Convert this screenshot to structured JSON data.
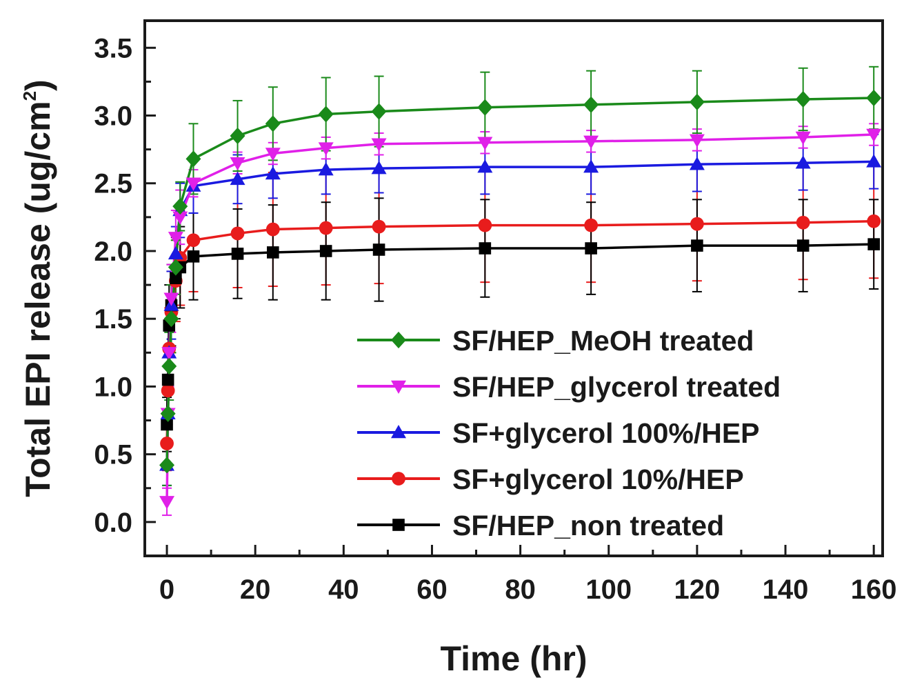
{
  "chart_data": {
    "type": "line",
    "title": "",
    "xlabel": "Time (hr)",
    "ylabel_main": "Total EPI release (ug/cm",
    "ylabel_sup": "2",
    "ylabel_close": ")",
    "xlim": [
      -5,
      162
    ],
    "ylim": [
      -0.25,
      3.7
    ],
    "xticks": [
      0,
      20,
      40,
      60,
      80,
      100,
      120,
      140,
      160
    ],
    "yticks": [
      0.0,
      0.5,
      1.0,
      1.5,
      2.0,
      2.5,
      3.0,
      3.5
    ],
    "xtick_labels": [
      "0",
      "20",
      "40",
      "60",
      "80",
      "100",
      "120",
      "140",
      "160"
    ],
    "ytick_labels": [
      "0.0",
      "0.5",
      "1.0",
      "1.5",
      "2.0",
      "2.5",
      "3.0",
      "3.5"
    ],
    "legend_position": "bottom-right",
    "x": [
      0,
      0.25,
      0.5,
      1,
      2,
      3,
      6,
      16,
      24,
      36,
      48,
      72,
      96,
      120,
      144,
      160
    ],
    "series": [
      {
        "name": "SF/HEP_MeOH treated",
        "color": "#1a8a1a",
        "marker": "diamond",
        "values": [
          0.42,
          0.8,
          1.15,
          1.5,
          1.88,
          2.33,
          2.68,
          2.85,
          2.94,
          3.01,
          3.03,
          3.06,
          3.08,
          3.1,
          3.12,
          3.13
        ],
        "errors": [
          0.15,
          0.2,
          0.25,
          0.25,
          0.2,
          0.18,
          0.26,
          0.26,
          0.27,
          0.27,
          0.26,
          0.26,
          0.25,
          0.23,
          0.23,
          0.23
        ]
      },
      {
        "name": "SF/HEP_glycerol treated",
        "color": "#e020e8",
        "marker": "triangle-down",
        "values": [
          0.15,
          0.8,
          1.25,
          1.65,
          2.1,
          2.25,
          2.5,
          2.65,
          2.72,
          2.76,
          2.79,
          2.8,
          2.81,
          2.82,
          2.84,
          2.86
        ],
        "errors": [
          0.1,
          0.2,
          0.25,
          0.25,
          0.2,
          0.2,
          0.1,
          0.08,
          0.08,
          0.08,
          0.08,
          0.08,
          0.08,
          0.08,
          0.08,
          0.08
        ]
      },
      {
        "name": "SF+glycerol 100%/HEP",
        "color": "#1a1ae0",
        "marker": "triangle-up",
        "values": [
          0.42,
          0.8,
          1.25,
          1.6,
          1.98,
          2.3,
          2.48,
          2.53,
          2.57,
          2.6,
          2.61,
          2.62,
          2.62,
          2.64,
          2.65,
          2.66
        ],
        "errors": [
          0.15,
          0.2,
          0.25,
          0.25,
          0.2,
          0.2,
          0.2,
          0.18,
          0.18,
          0.18,
          0.18,
          0.2,
          0.2,
          0.2,
          0.2,
          0.2
        ]
      },
      {
        "name": "SF+glycerol 10%/HEP",
        "color": "#e81c1c",
        "marker": "circle",
        "values": [
          0.58,
          0.97,
          1.28,
          1.55,
          1.78,
          1.95,
          2.08,
          2.13,
          2.16,
          2.17,
          2.18,
          2.19,
          2.19,
          2.2,
          2.21,
          2.22
        ],
        "errors": [
          0.2,
          0.25,
          0.3,
          0.3,
          0.3,
          0.35,
          0.38,
          0.4,
          0.42,
          0.42,
          0.42,
          0.42,
          0.42,
          0.42,
          0.42,
          0.42
        ]
      },
      {
        "name": "SF/HEP_non treated",
        "color": "#000000",
        "marker": "square",
        "values": [
          0.72,
          1.05,
          1.45,
          1.6,
          1.8,
          1.88,
          1.96,
          1.98,
          1.99,
          2.0,
          2.01,
          2.02,
          2.02,
          2.04,
          2.04,
          2.05
        ],
        "errors": [
          0.2,
          0.25,
          0.3,
          0.3,
          0.3,
          0.3,
          0.32,
          0.33,
          0.35,
          0.36,
          0.38,
          0.36,
          0.34,
          0.34,
          0.34,
          0.33
        ]
      }
    ]
  }
}
